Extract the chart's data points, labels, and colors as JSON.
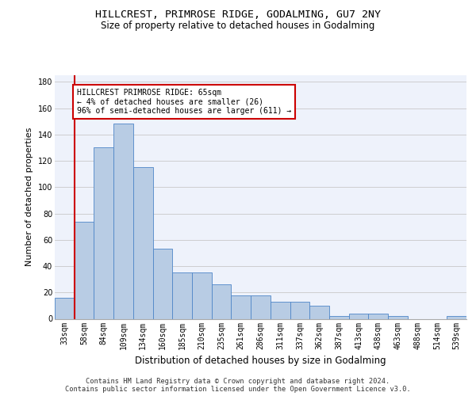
{
  "title": "HILLCREST, PRIMROSE RIDGE, GODALMING, GU7 2NY",
  "subtitle": "Size of property relative to detached houses in Godalming",
  "xlabel": "Distribution of detached houses by size in Godalming",
  "ylabel": "Number of detached properties",
  "categories": [
    "33sqm",
    "58sqm",
    "84sqm",
    "109sqm",
    "134sqm",
    "160sqm",
    "185sqm",
    "210sqm",
    "235sqm",
    "261sqm",
    "286sqm",
    "311sqm",
    "337sqm",
    "362sqm",
    "387sqm",
    "413sqm",
    "438sqm",
    "463sqm",
    "488sqm",
    "514sqm",
    "539sqm"
  ],
  "values": [
    16,
    74,
    130,
    148,
    115,
    53,
    35,
    35,
    26,
    18,
    18,
    13,
    13,
    10,
    2,
    4,
    4,
    2,
    0,
    0,
    2
  ],
  "bar_color": "#b8cce4",
  "bar_edge_color": "#4e86c8",
  "ylim": [
    0,
    185
  ],
  "yticks": [
    0,
    20,
    40,
    60,
    80,
    100,
    120,
    140,
    160,
    180
  ],
  "annotation_text": "HILLCREST PRIMROSE RIDGE: 65sqm\n← 4% of detached houses are smaller (26)\n96% of semi-detached houses are larger (611) →",
  "annotation_box_color": "#ffffff",
  "annotation_box_edge": "#cc0000",
  "vline_color": "#cc0000",
  "footer_line1": "Contains HM Land Registry data © Crown copyright and database right 2024.",
  "footer_line2": "Contains public sector information licensed under the Open Government Licence v3.0.",
  "bg_color": "#eef2fb",
  "grid_color": "#c8c8c8",
  "title_fontsize": 9.5,
  "subtitle_fontsize": 8.5,
  "ylabel_fontsize": 8,
  "xlabel_fontsize": 8.5,
  "tick_fontsize": 7,
  "annotation_fontsize": 7,
  "footer_fontsize": 6.2
}
